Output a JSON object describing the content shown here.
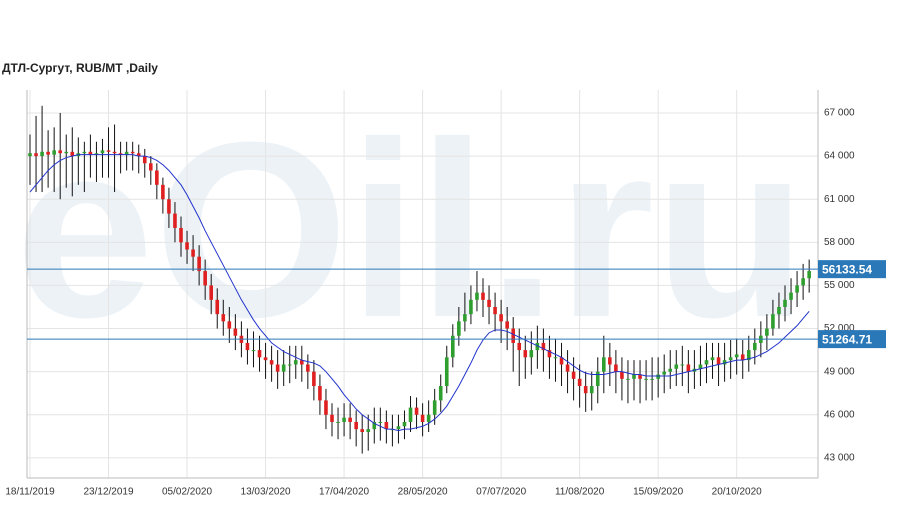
{
  "chart_data": {
    "type": "candlestick",
    "title": "ДТЛ-Сургут,  RUB/MT ,Daily",
    "watermark": "eOil.ru",
    "categories": [
      "18/11/2019",
      null,
      null,
      null,
      null,
      null,
      null,
      null,
      null,
      null,
      null,
      null,
      null,
      "23/12/2019",
      null,
      null,
      null,
      null,
      null,
      null,
      null,
      null,
      null,
      null,
      null,
      null,
      "05/02/2020",
      null,
      null,
      null,
      null,
      null,
      null,
      null,
      null,
      null,
      null,
      null,
      null,
      "13/03/2020",
      null,
      null,
      null,
      null,
      null,
      null,
      null,
      null,
      null,
      null,
      null,
      null,
      "17/04/2020",
      null,
      null,
      null,
      null,
      null,
      null,
      null,
      null,
      null,
      null,
      null,
      null,
      "28/05/2020",
      null,
      null,
      null,
      null,
      null,
      null,
      null,
      null,
      null,
      null,
      null,
      null,
      "07/07/2020",
      null,
      null,
      null,
      null,
      null,
      null,
      null,
      null,
      null,
      null,
      null,
      null,
      "11/08/2020",
      null,
      null,
      null,
      null,
      null,
      null,
      null,
      null,
      null,
      null,
      null,
      null,
      "15/09/2020",
      null,
      null,
      null,
      null,
      null,
      null,
      null,
      null,
      null,
      null,
      null,
      null,
      "20/10/2020",
      null,
      null,
      null,
      null,
      null,
      null,
      null,
      null,
      null,
      null,
      null,
      null
    ],
    "open": [
      64000,
      64200,
      64000,
      64300,
      64100,
      64400,
      64200,
      64300,
      64000,
      64200,
      64300,
      64100,
      64200,
      64400,
      64300,
      64200,
      64100,
      64300,
      64200,
      64000,
      63500,
      63000,
      62000,
      61000,
      60000,
      59000,
      58000,
      57500,
      57000,
      56000,
      55000,
      54000,
      53000,
      52500,
      52000,
      51500,
      51000,
      50500,
      50500,
      50000,
      49800,
      49500,
      49000,
      49500,
      49500,
      49800,
      49500,
      49000,
      48000,
      47000,
      46000,
      45500,
      45500,
      45800,
      45500,
      45000,
      44800,
      45000,
      45500,
      45500,
      45000,
      45000,
      45200,
      45500,
      46500,
      46000,
      45500,
      46000,
      47000,
      48000,
      50000,
      51500,
      52500,
      53000,
      54000,
      54500,
      54000,
      53500,
      53000,
      52500,
      52000,
      51000,
      50500,
      50000,
      50500,
      51000,
      50500,
      50000,
      50000,
      49500,
      49000,
      48500,
      48000,
      47500,
      48000,
      49000,
      50000,
      49500,
      49000,
      48500,
      48500,
      48800,
      48500,
      48500,
      48500,
      48800,
      49000,
      49200,
      49500,
      49500,
      49000,
      49200,
      49500,
      49800,
      50000,
      49500,
      49800,
      50000,
      50200,
      49800,
      50500,
      51000,
      51500,
      52000,
      53000,
      53500,
      54000,
      54500,
      55000,
      55500
    ],
    "high": [
      65500,
      66800,
      67500,
      65800,
      66000,
      67000,
      65500,
      66000,
      65300,
      65000,
      65500,
      65000,
      65200,
      66000,
      66200,
      65000,
      65000,
      65000,
      64800,
      64500,
      64000,
      63500,
      62500,
      61800,
      60800,
      59800,
      58800,
      58500,
      57800,
      56800,
      55800,
      54800,
      54000,
      53500,
      53000,
      52500,
      52000,
      51800,
      51500,
      51000,
      50800,
      50500,
      50500,
      50800,
      50800,
      50800,
      50200,
      49800,
      48800,
      47800,
      46800,
      46500,
      46800,
      46800,
      46300,
      46000,
      46000,
      46500,
      46500,
      46300,
      46000,
      46000,
      46300,
      47300,
      47200,
      46800,
      47000,
      47800,
      48800,
      50800,
      52300,
      53500,
      54500,
      55000,
      56000,
      55500,
      55000,
      54500,
      54000,
      53500,
      52800,
      52000,
      51500,
      51800,
      52200,
      52000,
      51500,
      51300,
      51000,
      50500,
      50000,
      49500,
      49000,
      49000,
      50000,
      51500,
      51000,
      50500,
      50000,
      49800,
      49800,
      49800,
      49800,
      50000,
      50000,
      50200,
      50500,
      50500,
      50800,
      50500,
      50500,
      50800,
      51000,
      51000,
      51000,
      51000,
      51200,
      51300,
      51200,
      51500,
      52000,
      52500,
      53000,
      54000,
      54500,
      55000,
      55500,
      56000,
      56500,
      56800
    ],
    "low": [
      62000,
      61500,
      61500,
      61800,
      61500,
      61000,
      61800,
      61200,
      62000,
      61500,
      62500,
      62200,
      62500,
      62500,
      61500,
      62800,
      63000,
      63000,
      62800,
      62500,
      62000,
      61000,
      60000,
      59000,
      58000,
      57000,
      56500,
      56000,
      55000,
      54000,
      53000,
      52000,
      51500,
      51000,
      50500,
      50000,
      49500,
      49300,
      49000,
      48500,
      48300,
      47800,
      48000,
      48200,
      48500,
      48300,
      47800,
      47000,
      46000,
      45000,
      44500,
      44300,
      44500,
      44300,
      43800,
      43300,
      43500,
      44000,
      44200,
      44000,
      43800,
      44000,
      44300,
      44800,
      45000,
      44500,
      44800,
      45300,
      46200,
      47500,
      49300,
      50800,
      51800,
      52300,
      53200,
      52800,
      52300,
      51800,
      51000,
      50500,
      49000,
      48000,
      48500,
      48800,
      49200,
      49000,
      48500,
      48300,
      48000,
      47500,
      47000,
      46500,
      46200,
      46300,
      46800,
      47500,
      48000,
      47500,
      47000,
      46800,
      47000,
      46800,
      47000,
      47000,
      47200,
      47500,
      47800,
      48000,
      48000,
      47500,
      47800,
      48000,
      48200,
      48500,
      48000,
      48300,
      48500,
      48800,
      48500,
      49000,
      49500,
      50000,
      50500,
      51500,
      52000,
      52500,
      53000,
      53500,
      54000,
      54500
    ],
    "close": [
      64200,
      64000,
      64300,
      64100,
      64400,
      64200,
      64300,
      64000,
      64200,
      64300,
      64100,
      64200,
      64400,
      64300,
      64200,
      64100,
      64300,
      64200,
      64000,
      63500,
      63000,
      62000,
      61000,
      60000,
      59000,
      58000,
      57500,
      57000,
      56000,
      55000,
      54000,
      53000,
      52500,
      52000,
      51500,
      51000,
      50500,
      50500,
      50000,
      49800,
      49500,
      49000,
      49500,
      49500,
      49800,
      49500,
      49000,
      48000,
      47000,
      46000,
      45500,
      45500,
      45800,
      45500,
      45000,
      44800,
      45000,
      45500,
      45500,
      45000,
      45000,
      45200,
      45500,
      46500,
      46000,
      45500,
      46000,
      47000,
      48000,
      50000,
      51500,
      52500,
      53000,
      54000,
      54500,
      54000,
      53500,
      53000,
      52500,
      52000,
      51000,
      50500,
      50000,
      50500,
      51000,
      50500,
      50000,
      50000,
      49500,
      49000,
      48500,
      48000,
      47500,
      48000,
      49000,
      50000,
      49500,
      49000,
      48500,
      48500,
      48800,
      48500,
      48500,
      48500,
      48800,
      49000,
      49200,
      49500,
      49500,
      49000,
      49200,
      49500,
      49800,
      50000,
      49500,
      49800,
      50000,
      50200,
      49800,
      50500,
      51000,
      51500,
      52000,
      53000,
      53500,
      54000,
      54500,
      55000,
      55500,
      56000
    ],
    "moving_average": [
      61500,
      62000,
      62500,
      63000,
      63400,
      63700,
      63900,
      64000,
      64100,
      64100,
      64100,
      64100,
      64100,
      64100,
      64100,
      64100,
      64100,
      64100,
      64000,
      64000,
      63900,
      63700,
      63400,
      63000,
      62500,
      62000,
      61300,
      60500,
      59700,
      58800,
      58000,
      57200,
      56400,
      55600,
      54800,
      54000,
      53300,
      52600,
      52000,
      51500,
      51000,
      50700,
      50400,
      50200,
      50000,
      49800,
      49700,
      49600,
      49400,
      49000,
      48500,
      48000,
      47400,
      46900,
      46400,
      46000,
      45700,
      45400,
      45200,
      45000,
      45000,
      44900,
      45000,
      45000,
      45100,
      45200,
      45400,
      45700,
      46100,
      46600,
      47300,
      48000,
      48800,
      49600,
      50500,
      51200,
      51700,
      51900,
      51900,
      51800,
      51600,
      51400,
      51200,
      51000,
      50800,
      50600,
      50400,
      50200,
      50000,
      49700,
      49400,
      49100,
      48900,
      48800,
      48800,
      48800,
      48900,
      49000,
      49000,
      48900,
      48800,
      48800,
      48700,
      48700,
      48700,
      48700,
      48700,
      48800,
      48900,
      49000,
      49100,
      49200,
      49300,
      49400,
      49500,
      49600,
      49700,
      49800,
      49800,
      49900,
      50000,
      50200,
      50400,
      50700,
      51000,
      51400,
      51800,
      52200,
      52700,
      53200
    ],
    "levels": [
      56133.54,
      51264.71
    ],
    "up_color": "#2e9e2e",
    "down_color": "#e02020",
    "wick_color": "#111111",
    "ma_color": "#2233cc",
    "level_color": "#2a78b8",
    "ylim": [
      41600,
      68600
    ],
    "yticks": [
      {
        "value": 43000,
        "label": "43 000"
      },
      {
        "value": 46000,
        "label": "46 000"
      },
      {
        "value": 49000,
        "label": "49 000"
      },
      {
        "value": 52000,
        "label": "52 000"
      },
      {
        "value": 55000,
        "label": "55 000"
      },
      {
        "value": 58000,
        "label": "58 000"
      },
      {
        "value": 61000,
        "label": "61 000"
      },
      {
        "value": 64000,
        "label": "64 000"
      },
      {
        "value": 67000,
        "label": "67 000"
      }
    ],
    "grid": true
  }
}
